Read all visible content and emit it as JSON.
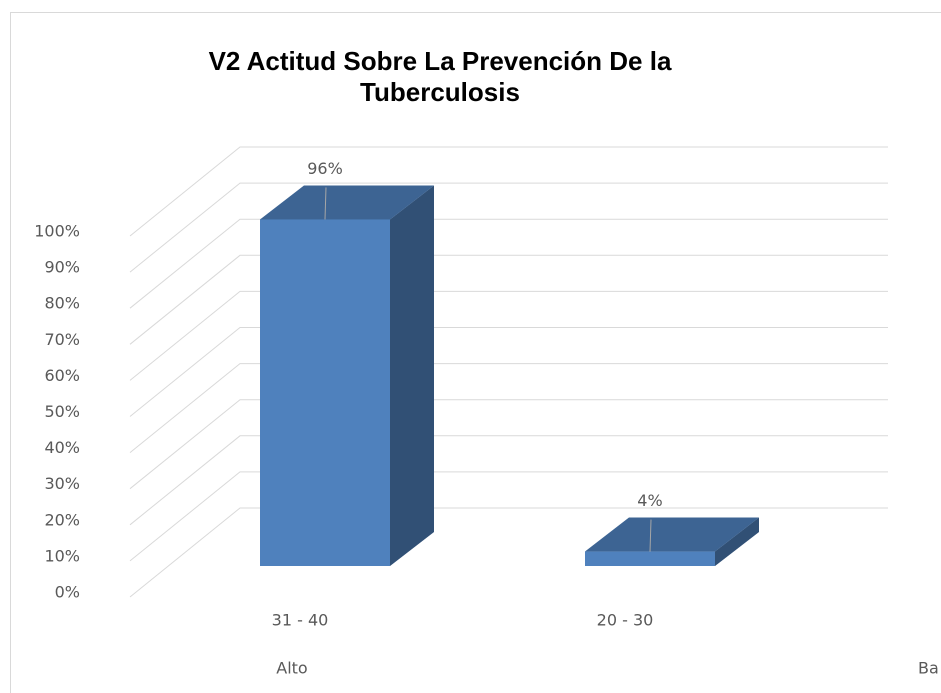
{
  "chart_data": {
    "type": "bar3d",
    "title": "V2 Actitud Sobre La Prevención De la Tuberculosis",
    "categories": [
      "31 - 40",
      "20 - 30"
    ],
    "category_groups": [
      "Alto",
      "Ba"
    ],
    "values": [
      96,
      4
    ],
    "value_labels": [
      "96%",
      "4%"
    ],
    "color": "#4f81bd",
    "ylim": [
      0,
      100
    ],
    "yticks": [
      {
        "value": 0,
        "label": "0%"
      },
      {
        "value": 10,
        "label": "10%"
      },
      {
        "value": 20,
        "label": "20%"
      },
      {
        "value": 30,
        "label": "30%"
      },
      {
        "value": 40,
        "label": "40%"
      },
      {
        "value": 50,
        "label": "50%"
      },
      {
        "value": 60,
        "label": "60%"
      },
      {
        "value": 70,
        "label": "70%"
      },
      {
        "value": 80,
        "label": "80%"
      },
      {
        "value": 90,
        "label": "90%"
      },
      {
        "value": 100,
        "label": "100%"
      }
    ],
    "grid": true
  }
}
